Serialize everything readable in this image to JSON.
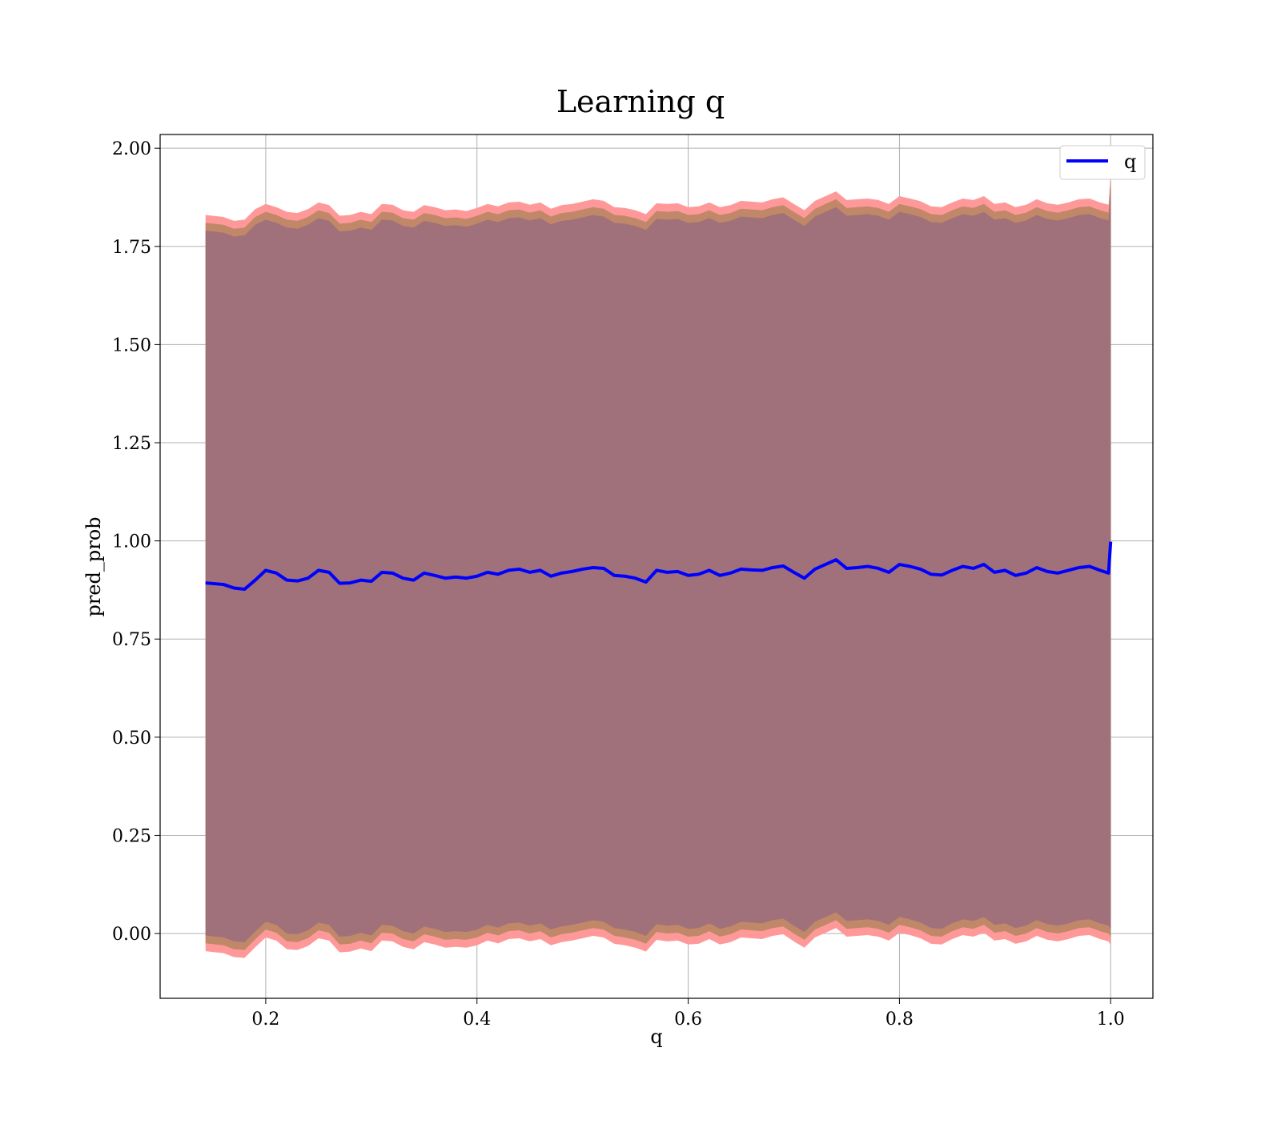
{
  "chart_data": {
    "type": "line",
    "title": "Learning q",
    "xlabel": "q",
    "ylabel": "pred_prob",
    "xlim": [
      0.1,
      1.04
    ],
    "ylim": [
      -0.165,
      2.035
    ],
    "xticks": [
      0.2,
      0.4,
      0.6,
      0.8,
      1.0
    ],
    "xtick_labels": [
      "0.2",
      "0.4",
      "0.6",
      "0.8",
      "1.0"
    ],
    "yticks": [
      0.0,
      0.25,
      0.5,
      0.75,
      1.0,
      1.25,
      1.5,
      1.75,
      2.0
    ],
    "ytick_labels": [
      "0.00",
      "0.25",
      "0.50",
      "0.75",
      "1.00",
      "1.25",
      "1.50",
      "1.75",
      "2.00"
    ],
    "grid": true,
    "legend": {
      "position": "top-right",
      "entries": [
        {
          "label": "q",
          "color": "#0000ff"
        }
      ]
    },
    "series": [
      {
        "name": "q",
        "color": "#0000ff",
        "x": [
          0.143,
          0.16,
          0.17,
          0.18,
          0.19,
          0.2,
          0.21,
          0.22,
          0.23,
          0.24,
          0.25,
          0.26,
          0.27,
          0.28,
          0.29,
          0.3,
          0.31,
          0.32,
          0.33,
          0.34,
          0.35,
          0.36,
          0.37,
          0.38,
          0.39,
          0.4,
          0.41,
          0.42,
          0.43,
          0.44,
          0.45,
          0.46,
          0.47,
          0.48,
          0.49,
          0.5,
          0.51,
          0.52,
          0.53,
          0.54,
          0.55,
          0.56,
          0.57,
          0.58,
          0.59,
          0.6,
          0.61,
          0.62,
          0.63,
          0.64,
          0.65,
          0.66,
          0.67,
          0.68,
          0.69,
          0.7,
          0.71,
          0.72,
          0.73,
          0.74,
          0.75,
          0.76,
          0.77,
          0.78,
          0.79,
          0.8,
          0.81,
          0.82,
          0.83,
          0.84,
          0.85,
          0.86,
          0.87,
          0.88,
          0.89,
          0.9,
          0.91,
          0.92,
          0.93,
          0.94,
          0.95,
          0.96,
          0.97,
          0.98,
          0.99,
          0.998,
          1.0
        ],
        "y": [
          0.893,
          0.889,
          0.88,
          0.877,
          0.9,
          0.925,
          0.918,
          0.9,
          0.898,
          0.905,
          0.925,
          0.92,
          0.892,
          0.893,
          0.9,
          0.897,
          0.92,
          0.918,
          0.905,
          0.9,
          0.918,
          0.912,
          0.905,
          0.908,
          0.905,
          0.91,
          0.92,
          0.915,
          0.925,
          0.928,
          0.92,
          0.925,
          0.91,
          0.918,
          0.922,
          0.928,
          0.932,
          0.93,
          0.912,
          0.91,
          0.905,
          0.895,
          0.925,
          0.92,
          0.922,
          0.912,
          0.915,
          0.925,
          0.912,
          0.918,
          0.928,
          0.926,
          0.925,
          0.932,
          0.936,
          0.92,
          0.905,
          0.928,
          0.94,
          0.952,
          0.93,
          0.932,
          0.935,
          0.93,
          0.92,
          0.94,
          0.935,
          0.928,
          0.915,
          0.913,
          0.925,
          0.935,
          0.93,
          0.94,
          0.92,
          0.925,
          0.912,
          0.918,
          0.932,
          0.922,
          0.918,
          0.925,
          0.932,
          0.935,
          0.925,
          0.918,
          0.998
        ]
      }
    ],
    "bands": [
      {
        "color": "#ff9999",
        "upper": [
          1.83,
          1.825,
          1.815,
          1.818,
          1.845,
          1.858,
          1.85,
          1.838,
          1.835,
          1.845,
          1.862,
          1.855,
          1.828,
          1.83,
          1.838,
          1.832,
          1.858,
          1.856,
          1.842,
          1.838,
          1.855,
          1.85,
          1.842,
          1.844,
          1.84,
          1.848,
          1.858,
          1.852,
          1.862,
          1.864,
          1.856,
          1.862,
          1.846,
          1.855,
          1.858,
          1.864,
          1.87,
          1.866,
          1.85,
          1.848,
          1.842,
          1.832,
          1.86,
          1.858,
          1.86,
          1.85,
          1.852,
          1.862,
          1.85,
          1.855,
          1.866,
          1.864,
          1.862,
          1.87,
          1.875,
          1.858,
          1.842,
          1.866,
          1.878,
          1.89,
          1.868,
          1.87,
          1.872,
          1.868,
          1.858,
          1.878,
          1.872,
          1.865,
          1.852,
          1.85,
          1.862,
          1.872,
          1.868,
          1.878,
          1.858,
          1.862,
          1.85,
          1.856,
          1.87,
          1.86,
          1.856,
          1.862,
          1.87,
          1.872,
          1.862,
          1.856,
          1.935
        ],
        "lower": [
          -0.045,
          -0.05,
          -0.06,
          -0.062,
          -0.035,
          -0.01,
          -0.018,
          -0.04,
          -0.042,
          -0.032,
          -0.012,
          -0.018,
          -0.048,
          -0.046,
          -0.038,
          -0.045,
          -0.018,
          -0.02,
          -0.034,
          -0.04,
          -0.022,
          -0.028,
          -0.036,
          -0.034,
          -0.036,
          -0.03,
          -0.018,
          -0.025,
          -0.014,
          -0.012,
          -0.02,
          -0.014,
          -0.03,
          -0.022,
          -0.018,
          -0.012,
          -0.006,
          -0.01,
          -0.026,
          -0.03,
          -0.036,
          -0.046,
          -0.016,
          -0.02,
          -0.018,
          -0.028,
          -0.026,
          -0.014,
          -0.028,
          -0.022,
          -0.01,
          -0.012,
          -0.014,
          -0.006,
          -0.002,
          -0.02,
          -0.036,
          -0.01,
          0.002,
          0.014,
          -0.008,
          -0.006,
          -0.004,
          -0.008,
          -0.018,
          0.002,
          -0.004,
          -0.012,
          -0.026,
          -0.028,
          -0.014,
          -0.004,
          -0.008,
          0.002,
          -0.018,
          -0.014,
          -0.026,
          -0.02,
          -0.006,
          -0.016,
          -0.02,
          -0.014,
          -0.006,
          -0.004,
          -0.014,
          -0.02,
          -0.03
        ]
      },
      {
        "color": "#c08868",
        "upper": [
          1.81,
          1.805,
          1.795,
          1.798,
          1.825,
          1.838,
          1.83,
          1.818,
          1.815,
          1.825,
          1.842,
          1.835,
          1.808,
          1.81,
          1.818,
          1.812,
          1.838,
          1.836,
          1.822,
          1.818,
          1.835,
          1.83,
          1.822,
          1.824,
          1.82,
          1.828,
          1.838,
          1.832,
          1.842,
          1.844,
          1.836,
          1.842,
          1.826,
          1.835,
          1.838,
          1.844,
          1.85,
          1.846,
          1.83,
          1.828,
          1.822,
          1.812,
          1.84,
          1.838,
          1.84,
          1.83,
          1.832,
          1.842,
          1.83,
          1.835,
          1.846,
          1.844,
          1.842,
          1.85,
          1.855,
          1.838,
          1.822,
          1.846,
          1.858,
          1.87,
          1.848,
          1.85,
          1.852,
          1.848,
          1.838,
          1.858,
          1.852,
          1.845,
          1.832,
          1.83,
          1.842,
          1.852,
          1.848,
          1.858,
          1.838,
          1.842,
          1.83,
          1.836,
          1.85,
          1.84,
          1.836,
          1.842,
          1.85,
          1.852,
          1.842,
          1.836,
          1.92
        ],
        "lower": [
          -0.025,
          -0.03,
          -0.04,
          -0.042,
          -0.015,
          0.01,
          0.002,
          -0.02,
          -0.022,
          -0.012,
          0.008,
          0.002,
          -0.028,
          -0.026,
          -0.018,
          -0.025,
          0.002,
          0.0,
          -0.014,
          -0.02,
          -0.002,
          -0.008,
          -0.016,
          -0.014,
          -0.016,
          -0.01,
          0.002,
          -0.005,
          0.006,
          0.008,
          0.0,
          0.006,
          -0.01,
          -0.002,
          0.002,
          0.008,
          0.014,
          0.01,
          -0.006,
          -0.01,
          -0.016,
          -0.026,
          0.004,
          0.0,
          0.002,
          -0.008,
          -0.006,
          0.006,
          -0.008,
          -0.002,
          0.01,
          0.008,
          0.006,
          0.014,
          0.018,
          0.0,
          -0.016,
          0.01,
          0.022,
          0.034,
          0.012,
          0.014,
          0.016,
          0.012,
          0.002,
          0.022,
          0.016,
          0.008,
          -0.006,
          -0.008,
          0.006,
          0.016,
          0.012,
          0.022,
          0.002,
          0.006,
          -0.006,
          0.0,
          0.014,
          0.004,
          0.0,
          0.006,
          0.014,
          0.016,
          0.006,
          0.0,
          -0.01
        ]
      },
      {
        "color": "#a0717a",
        "upper": [
          1.79,
          1.785,
          1.775,
          1.778,
          1.805,
          1.818,
          1.81,
          1.798,
          1.795,
          1.805,
          1.822,
          1.815,
          1.788,
          1.79,
          1.798,
          1.792,
          1.818,
          1.816,
          1.802,
          1.798,
          1.815,
          1.81,
          1.802,
          1.804,
          1.8,
          1.808,
          1.818,
          1.812,
          1.822,
          1.824,
          1.816,
          1.822,
          1.806,
          1.815,
          1.818,
          1.824,
          1.83,
          1.826,
          1.81,
          1.808,
          1.802,
          1.792,
          1.82,
          1.818,
          1.82,
          1.81,
          1.812,
          1.822,
          1.81,
          1.815,
          1.826,
          1.824,
          1.822,
          1.83,
          1.835,
          1.818,
          1.802,
          1.826,
          1.838,
          1.85,
          1.828,
          1.83,
          1.832,
          1.828,
          1.818,
          1.838,
          1.832,
          1.825,
          1.812,
          1.81,
          1.822,
          1.832,
          1.828,
          1.838,
          1.818,
          1.822,
          1.81,
          1.816,
          1.83,
          1.82,
          1.816,
          1.822,
          1.83,
          1.832,
          1.822,
          1.816,
          1.9
        ],
        "lower": [
          -0.005,
          -0.01,
          -0.02,
          -0.022,
          0.005,
          0.03,
          0.022,
          0.0,
          -0.002,
          0.008,
          0.028,
          0.022,
          -0.008,
          -0.006,
          0.002,
          -0.005,
          0.022,
          0.02,
          0.006,
          0.0,
          0.018,
          0.012,
          0.004,
          0.006,
          0.004,
          0.01,
          0.022,
          0.015,
          0.026,
          0.028,
          0.02,
          0.026,
          0.01,
          0.018,
          0.022,
          0.028,
          0.034,
          0.03,
          0.014,
          0.01,
          0.004,
          -0.006,
          0.024,
          0.02,
          0.022,
          0.012,
          0.014,
          0.026,
          0.012,
          0.018,
          0.03,
          0.028,
          0.026,
          0.034,
          0.038,
          0.02,
          0.004,
          0.03,
          0.042,
          0.054,
          0.032,
          0.034,
          0.036,
          0.032,
          0.022,
          0.042,
          0.036,
          0.028,
          0.014,
          0.012,
          0.026,
          0.036,
          0.032,
          0.042,
          0.022,
          0.026,
          0.014,
          0.02,
          0.034,
          0.024,
          0.02,
          0.026,
          0.034,
          0.036,
          0.026,
          0.02,
          0.01
        ]
      }
    ]
  }
}
